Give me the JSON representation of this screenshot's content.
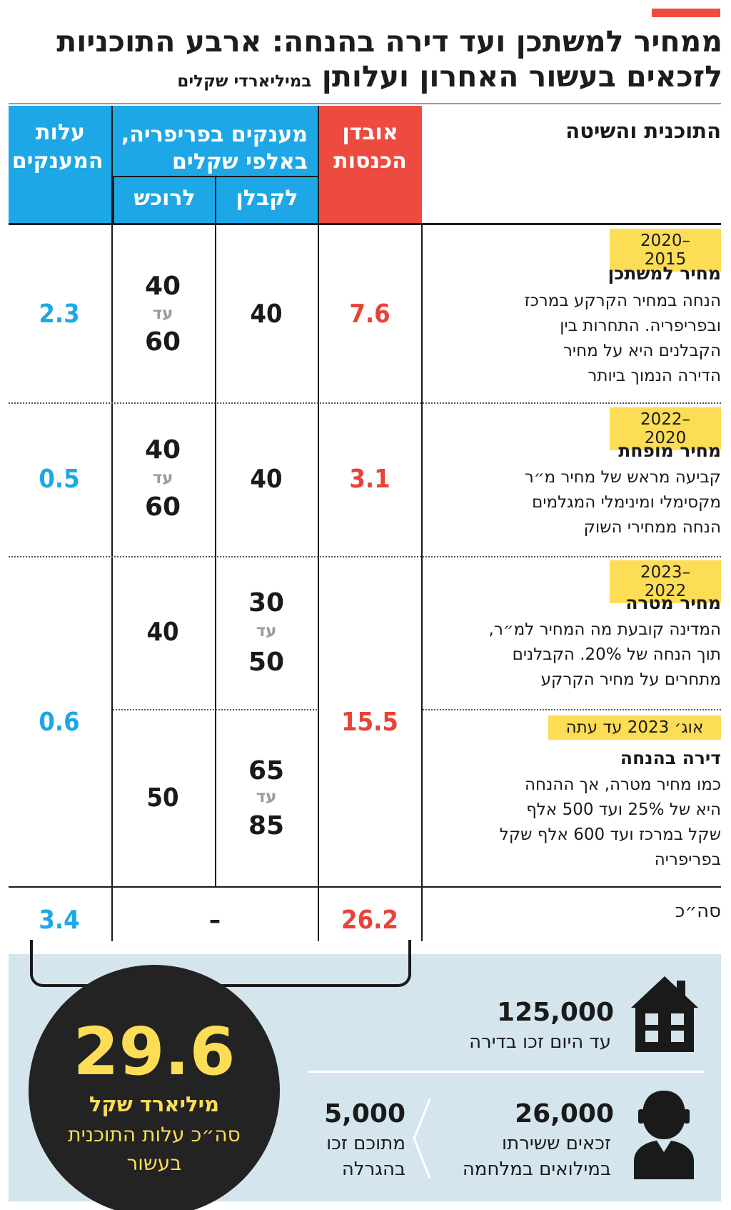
{
  "header": {
    "title_line1": "ממחיר למשתכן ועד דירה בהנחה: ארבע התוכניות",
    "title_line2": "לזכאים בעשור האחרון ועלותן",
    "title_unit": "במיליארדי שקלים"
  },
  "columns": {
    "method": "התוכנית והשיטה",
    "income_loss": "אובדן הכנסות",
    "grants": "מענקים בפריפריה, באלפי שקלים",
    "grants_contractor": "לקבלן",
    "grants_buyer": "לרוכש",
    "grants_cost": "עלות המענקים"
  },
  "rows": [
    {
      "period": "2020–2015",
      "name": "מחיר למשתכן",
      "desc": [
        "הנחה במחיר הקרקע במרכז",
        "ובפריפריה. התחרות בין",
        "הקבלנים היא על מחיר",
        "הדירה הנמוך ביותר"
      ],
      "income_loss": "7.6",
      "contractor": "40",
      "buyer_from": "40",
      "buyer_sep": "עד",
      "buyer_to": "60",
      "cost": "2.3"
    },
    {
      "period": "2022–2020",
      "name": "מחיר מופחת",
      "desc": [
        "קביעה מראש של מחיר מ״ר",
        "מקסימלי ומינימלי המגלמים",
        "הנחה ממחירי השוק"
      ],
      "income_loss": "3.1",
      "contractor": "40",
      "buyer_from": "40",
      "buyer_sep": "עד",
      "buyer_to": "60",
      "cost": "0.5"
    },
    {
      "period": "2023–2022",
      "name": "מחיר מטרה",
      "desc": [
        "המדינה קובעת מה המחיר למ״ר,",
        "תוך הנחה של 20%.  הקבלנים",
        "מתחרים על מחיר הקרקע"
      ],
      "contractor_from": "30",
      "contractor_sep": "עד",
      "contractor_to": "50",
      "buyer": "40"
    },
    {
      "period": "אוג׳ 2023 עד עתה",
      "name": "דירה בהנחה",
      "desc": [
        "כמו מחיר מטרה, אך ההנחה",
        "היא של 25% ועד 500 אלף",
        "שקל במרכז ועד 600 אלף שקל",
        "בפריפריה"
      ],
      "contractor_from": "65",
      "contractor_sep": "עד",
      "contractor_to": "85",
      "buyer": "50"
    }
  ],
  "merged": {
    "income_loss": "15.5",
    "cost": "0.6"
  },
  "total": {
    "label": "סה״כ",
    "income_loss": "26.2",
    "grants": "–",
    "cost": "3.4"
  },
  "summary": {
    "big_value": "29.6",
    "big_unit": "מיליארד שקל",
    "big_desc": "סה״כ עלות התוכנית בעשור"
  },
  "stats": {
    "winners_num": "125,000",
    "winners_txt": "עד היום זכו בדירה",
    "reservists_num": "26,000",
    "reservists_txt": [
      "זכאים ששירתו",
      "במילואים במלחמה"
    ],
    "reservists_won_num": "5,000",
    "reservists_won_txt": [
      "מתוכם זכו",
      "בהגרלה"
    ]
  },
  "colors": {
    "red": "#e94236",
    "blue": "#1ea7e6",
    "yellow": "#fddd55",
    "panel": "#d4e5ee"
  },
  "icons": [
    "house-icon",
    "person-icon"
  ]
}
